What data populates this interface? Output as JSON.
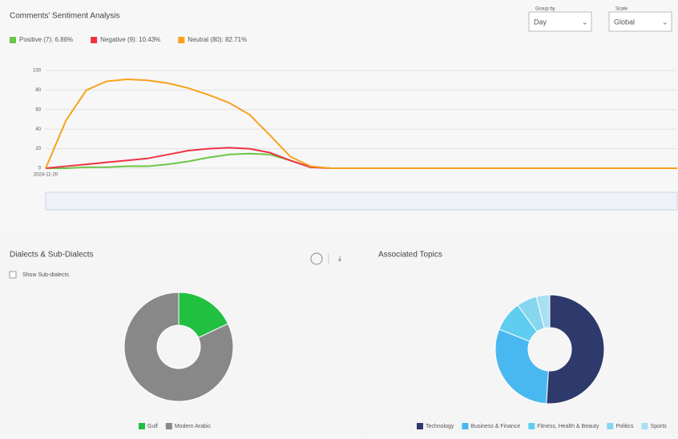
{
  "controls": [
    {
      "label": "Group by",
      "value": "Day"
    },
    {
      "label": "Scale",
      "value": "Global"
    }
  ],
  "chart_data": [
    {
      "type": "line",
      "title": "Comments' Sentiment Analysis",
      "categories": [
        "2024-11-20",
        null,
        null,
        null,
        null,
        null,
        null,
        null,
        null,
        null,
        null,
        null,
        null,
        null,
        null,
        null,
        null,
        null,
        null,
        null,
        null,
        null,
        null,
        null,
        null,
        null,
        null,
        null,
        null,
        null,
        null,
        null
      ],
      "series": [
        {
          "name": "Positive (7): 6.86%",
          "color": "#6cc644",
          "values": [
            0,
            0,
            1,
            1,
            2,
            2,
            4,
            7,
            11,
            14,
            15,
            14,
            8,
            1,
            0,
            0,
            0,
            0,
            0,
            0,
            0,
            0,
            0,
            0,
            0,
            0,
            0,
            0,
            0,
            0,
            0,
            0
          ]
        },
        {
          "name": "Negative (9): 10.43%",
          "color": "#ee3344",
          "values": [
            0,
            2,
            4,
            6,
            8,
            10,
            14,
            18,
            20,
            21,
            20,
            16,
            8,
            1,
            0,
            0,
            0,
            0,
            0,
            0,
            0,
            0,
            0,
            0,
            0,
            0,
            0,
            0,
            0,
            0,
            0,
            0
          ]
        },
        {
          "name": "Neutral (80): 82.71%",
          "color": "#f7a21b",
          "values": [
            0,
            49,
            80,
            89,
            91,
            90,
            87,
            82,
            75,
            67,
            55,
            34,
            12,
            2,
            0,
            0,
            0,
            0,
            0,
            0,
            0,
            0,
            0,
            0,
            0,
            0,
            0,
            0,
            0,
            0,
            0,
            0
          ]
        }
      ],
      "ylim": [
        0,
        100
      ],
      "yticks": [
        0,
        20,
        40,
        60,
        80,
        100
      ],
      "grid": true
    },
    {
      "type": "pie",
      "title": "Dialects & Sub-Dialects",
      "checkbox_label": "Show Sub-dialects",
      "categories": [
        "Gulf",
        "Modern Arabic"
      ],
      "values": [
        18,
        82
      ],
      "colors": [
        "#22c040",
        "#888888"
      ]
    },
    {
      "type": "pie",
      "title": "Associated Topics",
      "categories": [
        "Technology",
        "Business & Finance",
        "Fitness, Health & Beauty",
        "Politics",
        "Sports"
      ],
      "values": [
        51,
        30,
        9,
        6,
        4
      ],
      "colors": [
        "#2e3a6b",
        "#4ab8f0",
        "#5fcdef",
        "#86d6ee",
        "#a9e0f3"
      ]
    }
  ]
}
